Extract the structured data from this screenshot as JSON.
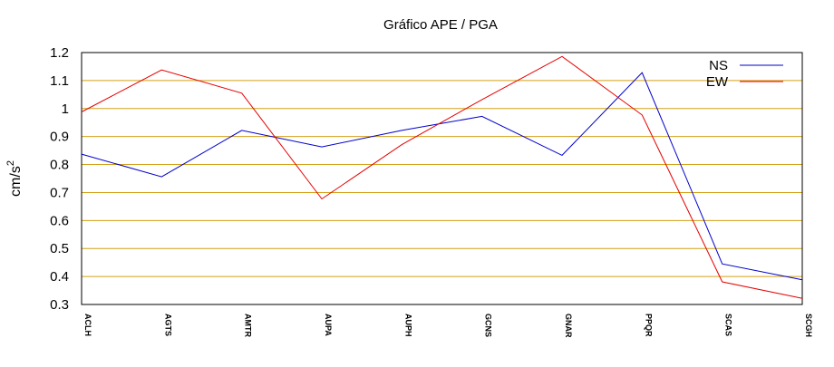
{
  "chart_data": {
    "type": "line",
    "title": "Gráfico  APE / PGA",
    "ylabel": "cm/s",
    "ylabel_superscript": "2",
    "xlabel": "",
    "categories": [
      "ACLH",
      "AGTS",
      "AMTR",
      "AUPA",
      "AUPH",
      "GCNS",
      "GNAR",
      "PPQR",
      "SCAS",
      "SCGH"
    ],
    "ylim": [
      0.3,
      1.2
    ],
    "yticks": [
      "0.3",
      "0.4",
      "0.5",
      "0.6",
      "0.7",
      "0.8",
      "0.9",
      "1",
      "1.1",
      "1.2"
    ],
    "grid": "horizontal",
    "grid_color": "#d4a017",
    "legend_position": "top-right",
    "series": [
      {
        "name": "NS",
        "color": "#0000cc",
        "values": [
          0.837,
          0.756,
          0.922,
          0.863,
          0.922,
          0.972,
          0.833,
          1.128,
          0.445,
          0.388
        ]
      },
      {
        "name": "EW",
        "color": "#e60000",
        "values": [
          0.988,
          1.138,
          1.055,
          0.677,
          0.871,
          1.032,
          1.186,
          0.977,
          0.381,
          0.322
        ]
      }
    ]
  }
}
